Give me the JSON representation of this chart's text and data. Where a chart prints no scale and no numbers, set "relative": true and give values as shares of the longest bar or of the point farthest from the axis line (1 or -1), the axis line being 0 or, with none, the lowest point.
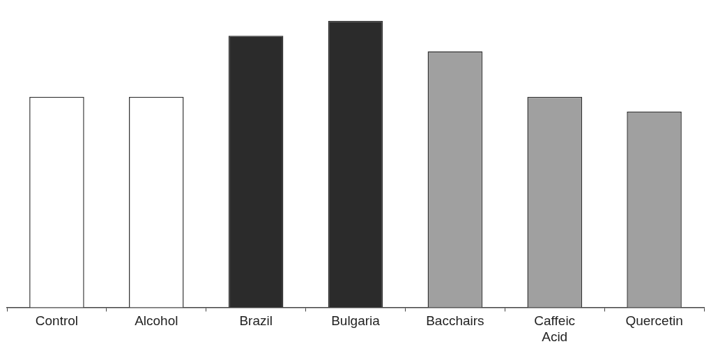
{
  "chart_data": {
    "type": "bar",
    "relative": true,
    "categories": [
      "Control",
      "Alcohol",
      "Brazil",
      "Bulgaria",
      "Bacchairs",
      "Caffeic Acid",
      "Quercetin"
    ],
    "values": [
      0.735,
      0.735,
      0.948,
      1,
      0.894,
      0.735,
      0.683
    ],
    "colors": [
      "#ffffff",
      "#ffffff",
      "#2b2b2b",
      "#2b2b2b",
      "#a0a0a0",
      "#a0a0a0",
      "#a0a0a0"
    ],
    "grid": false,
    "legend": false
  }
}
